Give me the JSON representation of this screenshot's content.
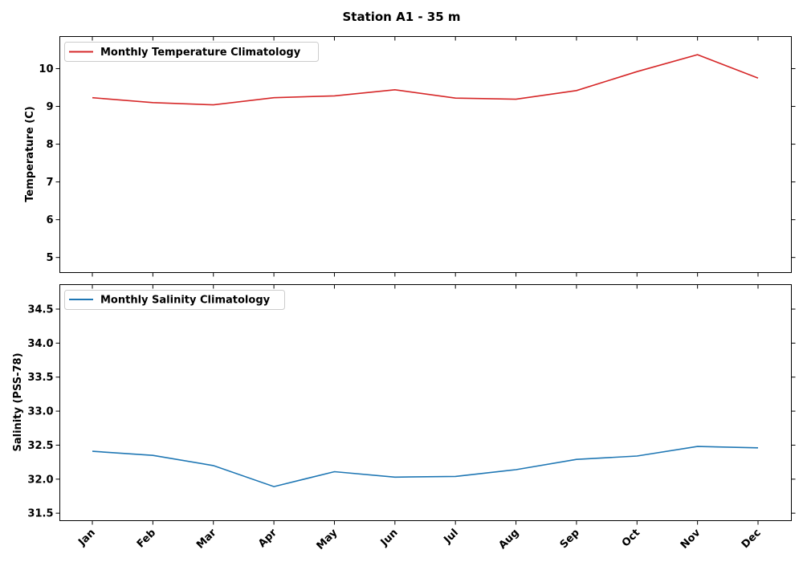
{
  "chart_data": {
    "title": "Station A1 - 35 m",
    "type": "line",
    "categories": [
      "Jan",
      "Feb",
      "Mar",
      "Apr",
      "May",
      "Jun",
      "Jul",
      "Aug",
      "Sep",
      "Oct",
      "Nov",
      "Dec"
    ],
    "panels": [
      {
        "id": "temperature",
        "ylabel": "Temperature (C)",
        "ylim": [
          4.6,
          10.85
        ],
        "yticks": [
          5,
          6,
          7,
          8,
          9,
          10
        ],
        "ytick_labels": [
          "5",
          "6",
          "7",
          "8",
          "9",
          "10"
        ],
        "legend_position": "upper-left",
        "series": [
          {
            "name": "Monthly Temperature Climatology",
            "color": "#d62728",
            "values": [
              9.23,
              9.1,
              9.04,
              9.23,
              9.28,
              9.44,
              9.22,
              9.19,
              9.42,
              9.92,
              10.37,
              9.75
            ]
          }
        ]
      },
      {
        "id": "salinity",
        "ylabel": "Salinity (PSS-78)",
        "ylim": [
          31.39,
          34.86
        ],
        "yticks": [
          31.5,
          32.0,
          32.5,
          33.0,
          33.5,
          34.0,
          34.5
        ],
        "ytick_labels": [
          "31.5",
          "32.0",
          "32.5",
          "33.0",
          "33.5",
          "34.0",
          "34.5"
        ],
        "legend_position": "upper-left",
        "series": [
          {
            "name": "Monthly Salinity Climatology",
            "color": "#1f77b4",
            "values": [
              32.41,
              32.35,
              32.2,
              31.89,
              32.11,
              32.03,
              32.04,
              32.14,
              32.29,
              32.34,
              32.48,
              32.46
            ]
          }
        ]
      }
    ],
    "grid": false
  }
}
